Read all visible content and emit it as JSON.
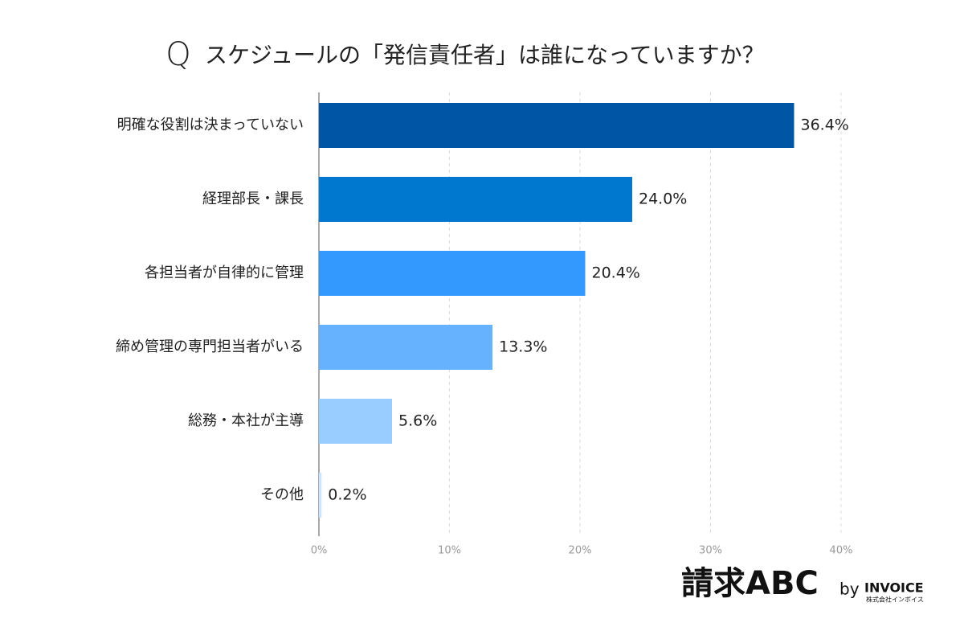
{
  "chart_data": {
    "type": "bar",
    "orientation": "horizontal",
    "title_mark": "Q",
    "title": "スケジュールの「発信責任者」は誰になっていますか？",
    "categories": [
      "明確な役割は決まっていない",
      "経理部長・課長",
      "各担当者が自律的に管理",
      "締め管理の専門担当者がいる",
      "総務・本社が主導",
      "その他"
    ],
    "values": [
      36.4,
      24.0,
      20.4,
      13.3,
      5.6,
      0.2
    ],
    "value_labels": [
      "36.4%",
      "24.0%",
      "20.4%",
      "13.3%",
      "5.6%",
      "0.2%"
    ],
    "colors": [
      "#0055a4",
      "#0078d0",
      "#3399ff",
      "#66b2ff",
      "#99ccff",
      "#cce5ff"
    ],
    "xlim": [
      0,
      40
    ],
    "xticks": [
      {
        "value": 0,
        "label": "0%"
      },
      {
        "value": 10,
        "label": "10%"
      },
      {
        "value": 20,
        "label": "20%"
      },
      {
        "value": 30,
        "label": "30%"
      },
      {
        "value": 40,
        "label": "40%"
      }
    ],
    "grid": true
  },
  "branding": {
    "logo": "請求ABC",
    "by": "by",
    "company": "INVOICE",
    "company_jp": "株式会社インボイス"
  }
}
